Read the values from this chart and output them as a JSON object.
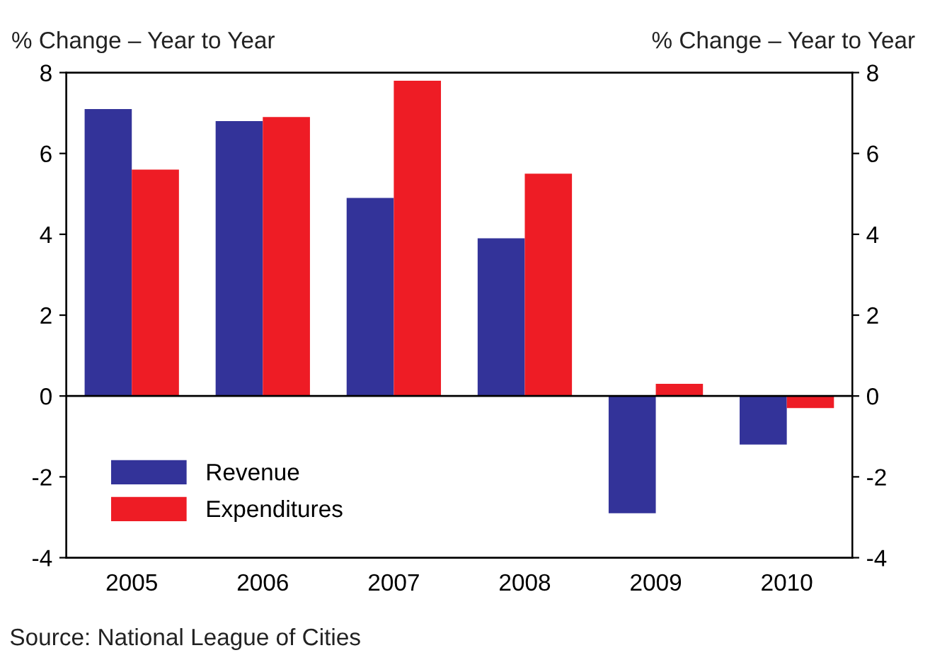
{
  "chart_data": {
    "type": "bar",
    "categories": [
      "2005",
      "2006",
      "2007",
      "2008",
      "2009",
      "2010"
    ],
    "series": [
      {
        "name": "Revenue",
        "color": "#333399",
        "values": [
          7.1,
          6.8,
          4.9,
          3.9,
          -2.9,
          -1.2
        ]
      },
      {
        "name": "Expenditures",
        "color": "#ee1c25",
        "values": [
          5.6,
          6.9,
          7.8,
          5.5,
          0.3,
          -0.3
        ]
      }
    ],
    "ylabel": "% Change – Year to Year",
    "y2label": "% Change – Year to Year",
    "ylim": [
      -4,
      8
    ],
    "yticks": [
      -4,
      -2,
      0,
      2,
      4,
      6,
      8
    ],
    "y2lim": [
      -4,
      8
    ],
    "y2ticks": [
      -4,
      -2,
      0,
      2,
      4,
      6,
      8
    ],
    "ref_lines": [
      {
        "axis": "y",
        "value": 0,
        "color": "#000000"
      }
    ],
    "legend": "bottom left",
    "grid": false,
    "annotations": [
      "Source: National League of Cities"
    ]
  }
}
